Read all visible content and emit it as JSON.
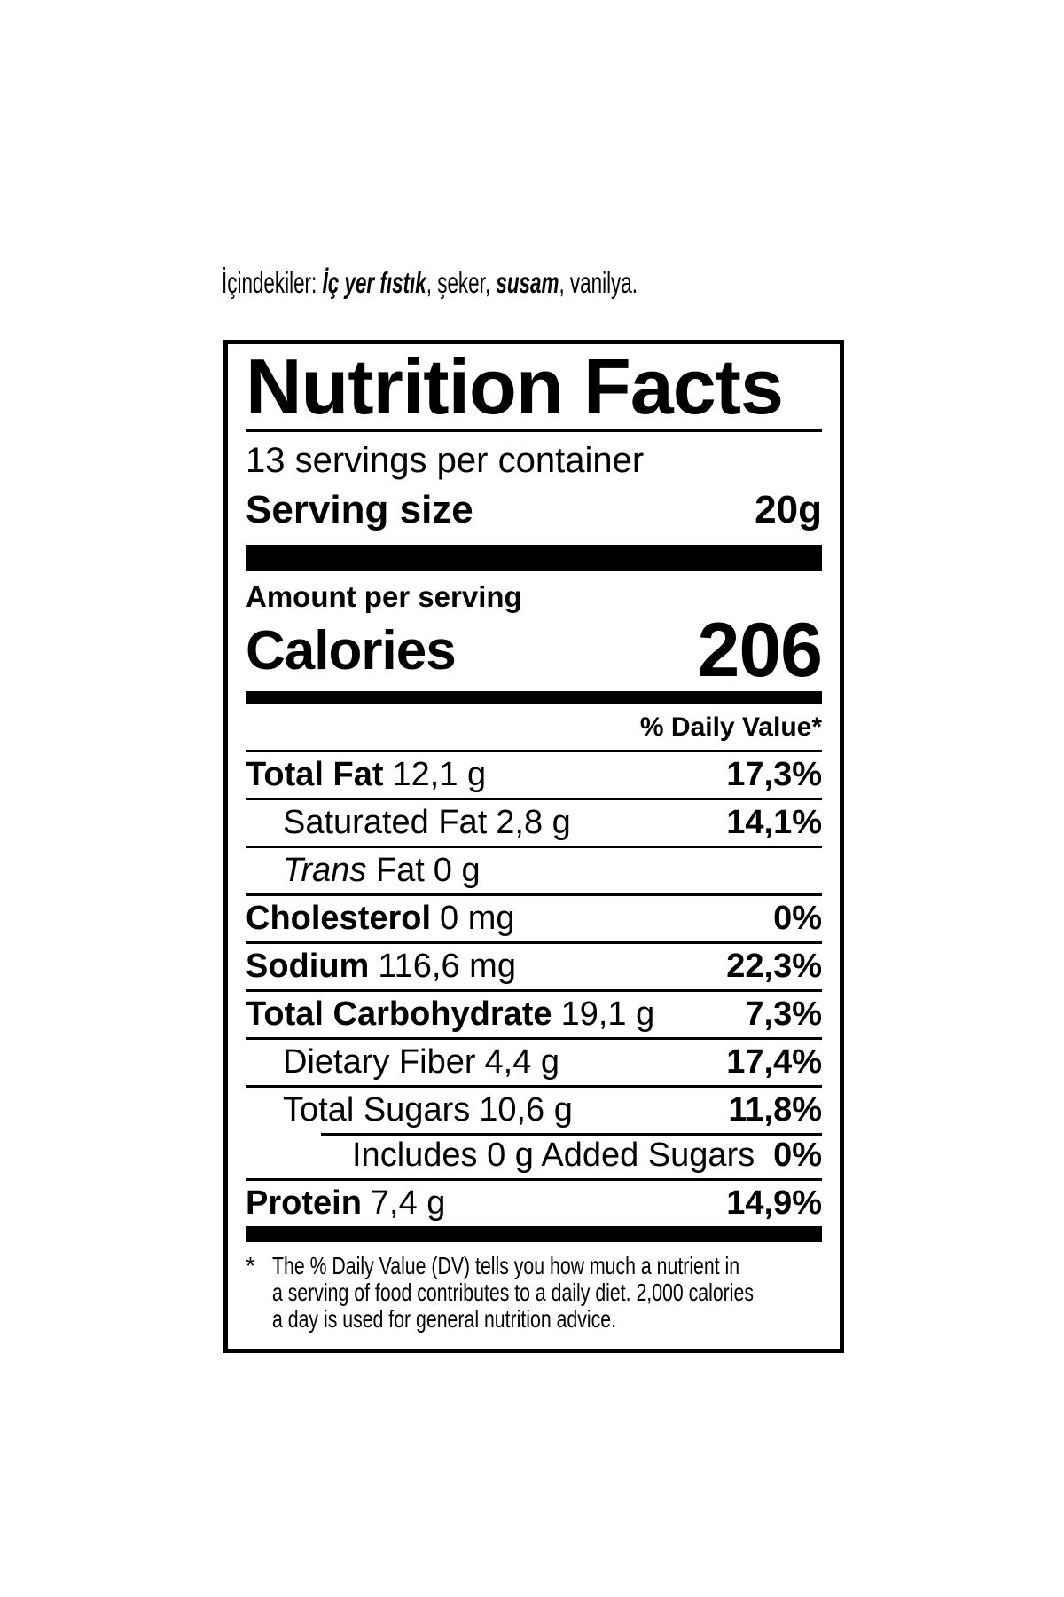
{
  "ingredients": {
    "prefix": "İçindekiler: ",
    "item1_bold": "İç yer fıstık",
    "mid1": ", şeker, ",
    "item2_bold": "susam",
    "suffix": ", vanilya."
  },
  "label": {
    "title": "Nutrition Facts",
    "servings_per_container": "13 servings per container",
    "serving_size": {
      "label": "Serving size",
      "value": "20g"
    },
    "amount_per_serving": "Amount per serving",
    "calories": {
      "label": "Calories",
      "value": "206"
    },
    "daily_value_header": "% Daily Value*",
    "rows": [
      {
        "name": "Total Fat",
        "amount": "12,1 g",
        "dv": "17,3%"
      },
      {
        "name": "Saturated Fat",
        "amount": "2,8 g",
        "dv": "14,1%"
      },
      {
        "name_italic": "Trans",
        "name": " Fat",
        "amount": "0 g",
        "dv": ""
      },
      {
        "name": "Cholesterol",
        "amount": "0 mg",
        "dv": "0%"
      },
      {
        "name": "Sodium",
        "amount": "116,6 mg",
        "dv": "22,3%"
      },
      {
        "name": "Total Carbohydrate",
        "amount": "19,1 g",
        "dv": "7,3%"
      },
      {
        "name": "Dietary Fiber",
        "amount": "4,4 g",
        "dv": "17,4%"
      },
      {
        "name": "Total Sugars",
        "amount": "10,6 g",
        "dv": "11,8%"
      },
      {
        "name": "Includes 0 g Added Sugars",
        "amount": "",
        "dv": "0%"
      },
      {
        "name": "Protein",
        "amount": "7,4 g",
        "dv": "14,9%"
      }
    ],
    "footnote": {
      "marker": "*",
      "lines": [
        "The % Daily Value (DV) tells you how much a nutrient in",
        "a serving of food contributes to a daily diet. 2,000 calories",
        "a day is used for general nutrition advice."
      ]
    },
    "colors": {
      "ink": "#000000",
      "paper": "#ffffff"
    }
  }
}
